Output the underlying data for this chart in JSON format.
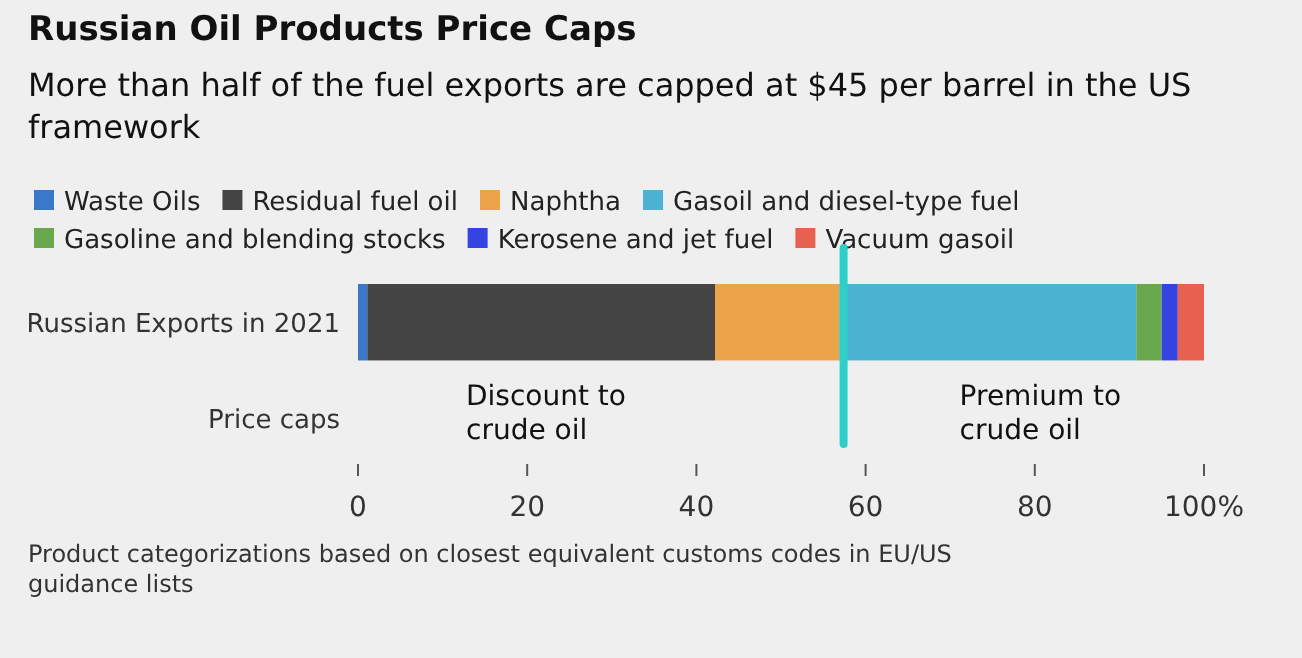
{
  "chart_data": {
    "type": "bar",
    "orientation": "horizontal",
    "stacked": true,
    "title": "Russian Oil Products Price Caps",
    "subtitle": "More than half of the fuel exports are capped at $45 per barrel in the US framework",
    "categories": [
      "Russian Exports in 2021",
      "Price caps"
    ],
    "series": [
      {
        "name": "Waste Oils",
        "color": "#3a78c9",
        "values": [
          1.1,
          null
        ]
      },
      {
        "name": "Residual fuel oil",
        "color": "#444444",
        "values": [
          41.1,
          null
        ]
      },
      {
        "name": "Naphtha",
        "color": "#eba44a",
        "values": [
          14.7,
          null
        ]
      },
      {
        "name": "Gasoil and diesel-type fuel",
        "color": "#4db3d3",
        "values": [
          35.1,
          null
        ]
      },
      {
        "name": "Gasoline and blending stocks",
        "color": "#6aa84f",
        "values": [
          3.0,
          null
        ]
      },
      {
        "name": "Kerosene and jet fuel",
        "color": "#3344e0",
        "values": [
          1.9,
          null
        ]
      },
      {
        "name": "Vacuum gasoil",
        "color": "#e8604f",
        "values": [
          3.1,
          null
        ]
      }
    ],
    "xlim": [
      0,
      100
    ],
    "xticks": [
      0,
      20,
      40,
      60,
      80,
      {
        "value": 100,
        "label": "100%"
      }
    ],
    "ref_lines": [
      {
        "axis": "x",
        "value": 57.4,
        "color": "#2ecfc9"
      }
    ],
    "annotations": [
      "Discount to\ncrude oil",
      "Premium to\ncrude oil",
      "Product categorizations based on closest equivalent customs codes in EU/US\nguidance lists"
    ],
    "grid": false,
    "legend": "top"
  }
}
